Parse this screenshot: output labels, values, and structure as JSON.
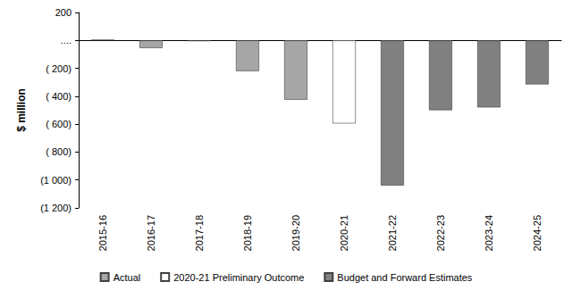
{
  "chart_data": {
    "type": "bar",
    "y_label": "$ million",
    "categories": [
      "2015-16",
      "2016-17",
      "2017-18",
      "2018-19",
      "2019-20",
      "2020-21",
      "2021-22",
      "2022-23",
      "2023-24",
      "2024-25"
    ],
    "series": [
      {
        "name": "Actual",
        "color": "#a6a6a6",
        "values": [
          5,
          -55,
          -5,
          -220,
          -425,
          null,
          null,
          null,
          null,
          null
        ]
      },
      {
        "name": "2020-21 Preliminary Outcome",
        "color": "#ffffff",
        "values": [
          null,
          null,
          null,
          null,
          null,
          -595,
          null,
          null,
          null,
          null
        ]
      },
      {
        "name": "Budget and Forward Estimates",
        "color": "#808080",
        "values": [
          null,
          null,
          null,
          null,
          null,
          null,
          -1040,
          -500,
          -480,
          -315
        ]
      }
    ],
    "ylim": [
      -1200,
      200
    ],
    "yticks": [
      200,
      {
        "value": 0,
        "label": "...."
      },
      {
        "value": -200,
        "label": "( 200)"
      },
      {
        "value": -400,
        "label": "( 400)"
      },
      {
        "value": -600,
        "label": "( 600)"
      },
      {
        "value": -800,
        "label": "( 800)"
      },
      {
        "value": -1000,
        "label": "(1 000)"
      },
      {
        "value": -1200,
        "label": "(1 200)"
      }
    ],
    "grid": false,
    "legend": "bottom"
  }
}
